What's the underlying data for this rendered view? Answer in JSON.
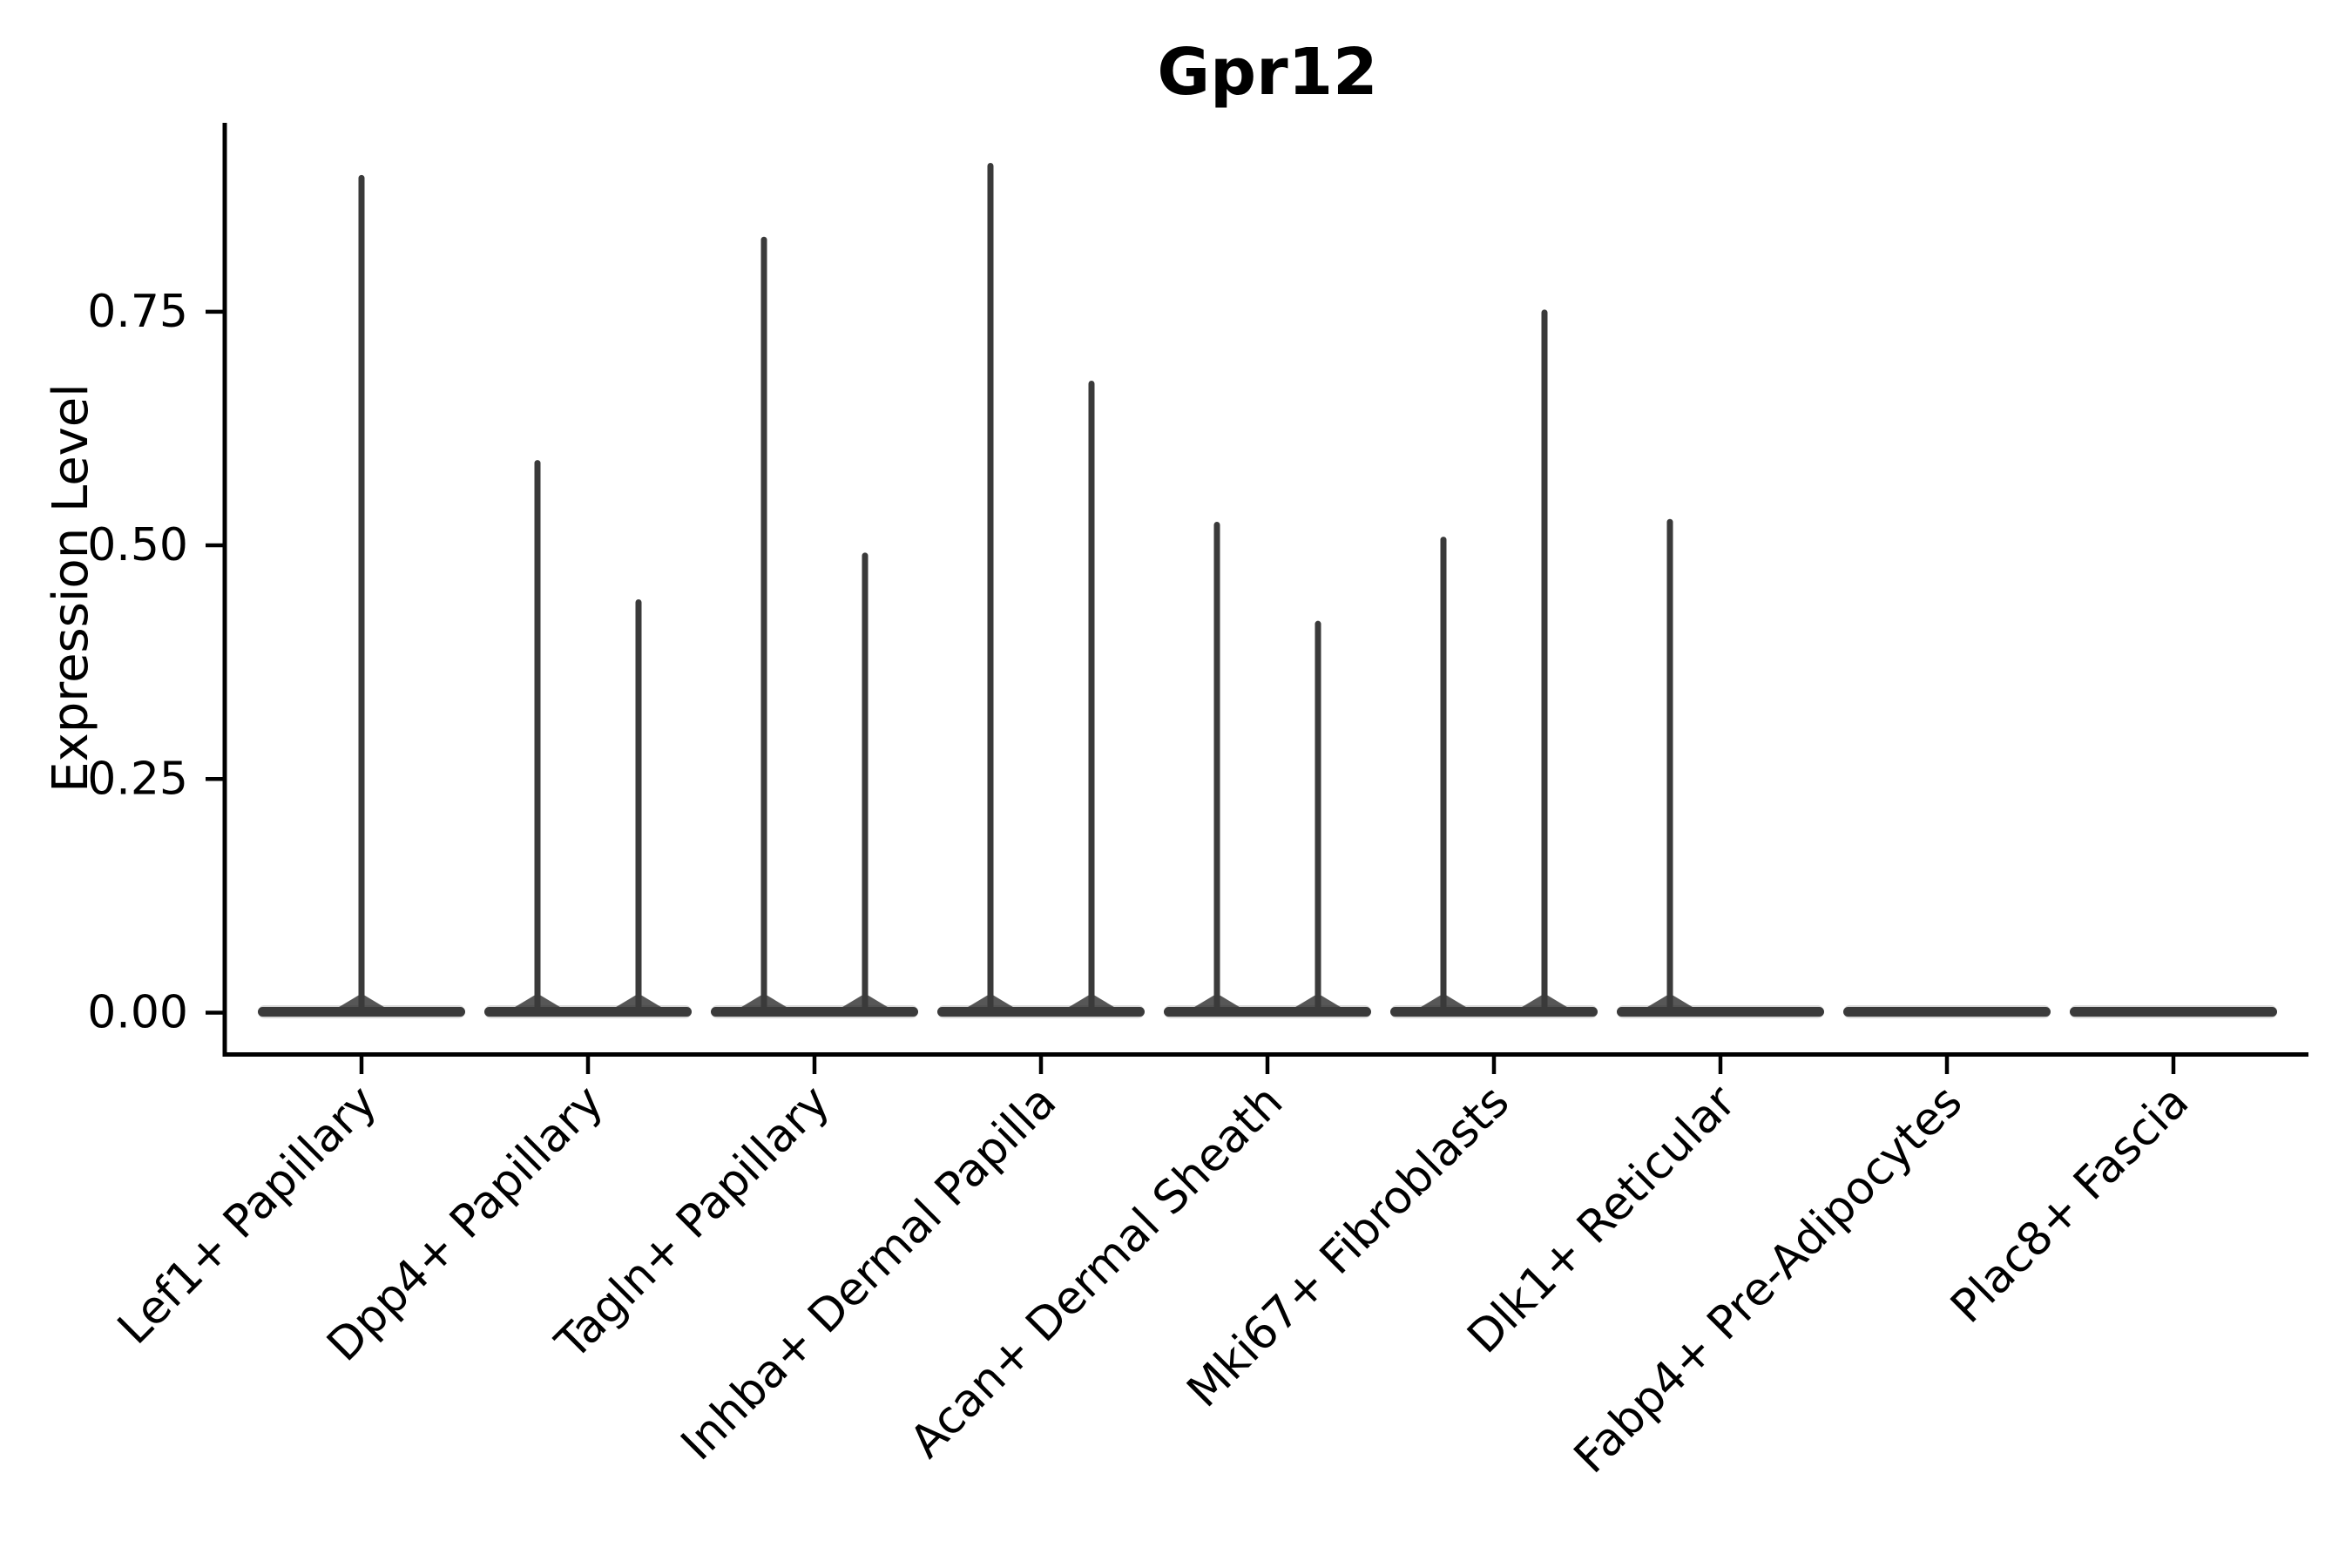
{
  "chart_data": {
    "type": "violin",
    "title": "Gpr12",
    "xlabel": "",
    "ylabel": "Expression Level",
    "ytick_labels": [
      "0.00",
      "0.25",
      "0.50",
      "0.75"
    ],
    "ytick_values": [
      0.0,
      0.25,
      0.5,
      0.75
    ],
    "ylim": [
      -0.045,
      0.952
    ],
    "grid": false,
    "legend": "none",
    "violin_color": "#3a3a3a",
    "violin_fringe_color": "#9a9a9a",
    "axis_color": "#000000",
    "background_color": "#ffffff",
    "description": "Sparse single-cell expression violin plot: each cluster shows a flat density pancake at 0 with thin spikes rising to the maximum expression value; several clusters contain two side-by-side (split) violins.",
    "categories": [
      {
        "label": "Lef1+ Papillary",
        "violins": [
          {
            "pos": "center",
            "max": 0.893
          }
        ]
      },
      {
        "label": "Dpp4+ Papillary",
        "violins": [
          {
            "pos": "left",
            "max": 0.588
          },
          {
            "pos": "right",
            "max": 0.439
          }
        ]
      },
      {
        "label": "Tagln+ Papillary",
        "violins": [
          {
            "pos": "left",
            "max": 0.827
          },
          {
            "pos": "right",
            "max": 0.489
          }
        ]
      },
      {
        "label": "Inhba+ Dermal Papilla",
        "violins": [
          {
            "pos": "left",
            "max": 0.906
          },
          {
            "pos": "right",
            "max": 0.673
          }
        ]
      },
      {
        "label": "Acan+ Dermal Sheath",
        "violins": [
          {
            "pos": "left",
            "max": 0.522
          },
          {
            "pos": "right",
            "max": 0.416
          }
        ]
      },
      {
        "label": "Mki67+ Fibroblasts",
        "violins": [
          {
            "pos": "left",
            "max": 0.506
          },
          {
            "pos": "right",
            "max": 0.749
          }
        ]
      },
      {
        "label": "Dlk1+ Reticular",
        "violins": [
          {
            "pos": "left",
            "max": 0.525
          },
          {
            "pos": "right",
            "max": 0.0
          }
        ]
      },
      {
        "label": "Fabp4+ Pre-Adipocytes",
        "violins": [
          {
            "pos": "center",
            "max": 0.0
          }
        ]
      },
      {
        "label": "Plac8+ Fascia",
        "violins": [
          {
            "pos": "center",
            "max": 0.0
          }
        ]
      }
    ]
  }
}
